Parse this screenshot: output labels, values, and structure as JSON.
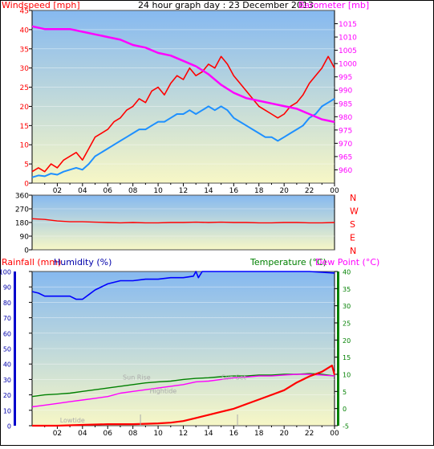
{
  "header": {
    "title": "24 hour graph day : 23 December 2013",
    "wind_label": "Windspeed [mph]",
    "baro_label": "Barometer [mb]"
  },
  "bottom_header": {
    "rain_label": "Rainfall (mm)",
    "hum_label": "Humidity (%)",
    "temp_label": "Temperature (°C)",
    "dew_label": "Dew Point (°C)"
  },
  "colors": {
    "wind_gust": "#ff0000",
    "wind_avg": "#1e90ff",
    "barometer": "#ff00ff",
    "direction": "#ff0000",
    "rain": "#ff0000",
    "humidity": "#0000ff",
    "temperature": "#008000",
    "dewpoint": "#ff00ff",
    "annotation": "#aaaaaa",
    "bg_top": "#86b9f0",
    "bg_bottom": "#f7f7c6"
  },
  "x_ticks": [
    "02",
    "04",
    "06",
    "08",
    "10",
    "12",
    "14",
    "16",
    "18",
    "20",
    "22",
    "00"
  ],
  "annotations": [
    {
      "text": "Lowtide",
      "x": 3.2,
      "y": 2
    },
    {
      "text": "Sun Rise",
      "x": 8.3,
      "y": 30
    },
    {
      "text": "Hightide",
      "x": 10.4,
      "y": 21
    },
    {
      "text": "Sun Set",
      "x": 16.0,
      "y": 30
    }
  ],
  "chart_data": [
    {
      "type": "line",
      "name": "wind-baro",
      "x_range": [
        0,
        24
      ],
      "y_left": {
        "label": "Windspeed [mph]",
        "range": [
          0,
          45
        ],
        "ticks": [
          0,
          5,
          10,
          15,
          20,
          25,
          30,
          35,
          40,
          45
        ]
      },
      "y_right": {
        "label": "Barometer [mb]",
        "range": [
          955,
          1020
        ],
        "ticks": [
          960,
          965,
          970,
          975,
          980,
          985,
          990,
          995,
          1000,
          1005,
          1010,
          1015
        ]
      },
      "series": [
        {
          "name": "Gust",
          "axis": "left",
          "x": [
            0,
            0.5,
            1,
            1.5,
            2,
            2.5,
            3,
            3.5,
            4,
            4.5,
            5,
            5.5,
            6,
            6.5,
            7,
            7.5,
            8,
            8.5,
            9,
            9.5,
            10,
            10.5,
            11,
            11.5,
            12,
            12.5,
            13,
            13.5,
            14,
            14.5,
            15,
            15.5,
            16,
            16.5,
            17,
            17.5,
            18,
            18.5,
            19,
            19.5,
            20,
            20.5,
            21,
            21.5,
            22,
            22.5,
            23,
            23.5,
            24
          ],
          "values": [
            3,
            4,
            3,
            5,
            4,
            6,
            7,
            8,
            6,
            9,
            12,
            13,
            14,
            16,
            17,
            19,
            20,
            22,
            21,
            24,
            25,
            23,
            26,
            28,
            27,
            30,
            28,
            29,
            31,
            30,
            33,
            31,
            28,
            26,
            24,
            22,
            20,
            19,
            18,
            17,
            18,
            20,
            21,
            23,
            26,
            28,
            30,
            33,
            30
          ]
        },
        {
          "name": "Average",
          "axis": "left",
          "x": [
            0,
            0.5,
            1,
            1.5,
            2,
            2.5,
            3,
            3.5,
            4,
            4.5,
            5,
            5.5,
            6,
            6.5,
            7,
            7.5,
            8,
            8.5,
            9,
            9.5,
            10,
            10.5,
            11,
            11.5,
            12,
            12.5,
            13,
            13.5,
            14,
            14.5,
            15,
            15.5,
            16,
            16.5,
            17,
            17.5,
            18,
            18.5,
            19,
            19.5,
            20,
            20.5,
            21,
            21.5,
            22,
            22.5,
            23,
            23.5,
            24
          ],
          "values": [
            1.5,
            2,
            1.8,
            2.5,
            2.2,
            3,
            3.5,
            4,
            3.5,
            5,
            7,
            8,
            9,
            10,
            11,
            12,
            13,
            14,
            14,
            15,
            16,
            16,
            17,
            18,
            18,
            19,
            18,
            19,
            20,
            19,
            20,
            19,
            17,
            16,
            15,
            14,
            13,
            12,
            12,
            11,
            12,
            13,
            14,
            15,
            17,
            18,
            20,
            21,
            22
          ]
        },
        {
          "name": "Barometer",
          "axis": "right",
          "x": [
            0,
            1,
            2,
            3,
            4,
            5,
            6,
            7,
            8,
            9,
            10,
            11,
            12,
            13,
            14,
            15,
            16,
            17,
            18,
            19,
            20,
            21,
            22,
            23,
            24
          ],
          "values": [
            1014,
            1013,
            1013,
            1013,
            1012,
            1011,
            1010,
            1009,
            1007,
            1006,
            1004,
            1003,
            1001,
            999,
            996,
            992,
            989,
            987,
            986,
            985,
            984,
            983,
            981,
            979,
            978
          ]
        }
      ]
    },
    {
      "type": "line",
      "name": "wind-direction",
      "x_range": [
        0,
        24
      ],
      "y_left": {
        "range": [
          0,
          360
        ],
        "ticks": [
          0,
          90,
          180,
          270,
          360
        ]
      },
      "y_right_labels": [
        "N",
        "W",
        "S",
        "E",
        "N"
      ],
      "series": [
        {
          "name": "Direction",
          "x": [
            0,
            1,
            2,
            3,
            4,
            5,
            6,
            7,
            8,
            9,
            10,
            11,
            12,
            13,
            14,
            15,
            16,
            17,
            18,
            19,
            20,
            21,
            22,
            23,
            24
          ],
          "values": [
            205,
            200,
            190,
            185,
            185,
            182,
            180,
            178,
            180,
            178,
            178,
            180,
            180,
            182,
            180,
            182,
            180,
            180,
            178,
            178,
            180,
            180,
            178,
            178,
            180
          ]
        }
      ]
    },
    {
      "type": "line",
      "name": "rain-hum-temp",
      "x_range": [
        0,
        24
      ],
      "y_left": {
        "range": [
          0,
          100
        ],
        "ticks": [
          0,
          10,
          20,
          30,
          40,
          50,
          60,
          70,
          80,
          90,
          100
        ]
      },
      "y_right": {
        "range": [
          -5,
          40
        ],
        "ticks": [
          -5,
          0,
          5,
          10,
          15,
          20,
          25,
          30,
          35,
          40
        ]
      },
      "series": [
        {
          "name": "Humidity",
          "axis": "left",
          "x": [
            0,
            0.5,
            1,
            2,
            3,
            3.5,
            4,
            4.5,
            5,
            6,
            7,
            8,
            9,
            10,
            11,
            12,
            12.8,
            13,
            13.2,
            13.5,
            14,
            15,
            16,
            18,
            20,
            22,
            24
          ],
          "values": [
            87,
            86,
            84,
            84,
            84,
            82,
            82,
            85,
            88,
            92,
            94,
            94,
            95,
            95,
            96,
            96,
            97,
            100,
            96,
            100,
            100,
            100,
            100,
            100,
            100,
            100,
            99
          ]
        },
        {
          "name": "Rainfall",
          "axis": "left",
          "x": [
            0,
            2,
            4,
            6,
            8,
            10,
            11,
            12,
            13,
            14,
            15,
            16,
            17,
            18,
            19,
            20,
            21,
            22,
            23,
            23.8,
            24
          ],
          "values": [
            0,
            0,
            0.5,
            1,
            1,
            1.5,
            2,
            3,
            5,
            7,
            9,
            11,
            14,
            17,
            20,
            23,
            28,
            32,
            35,
            39,
            33
          ]
        },
        {
          "name": "Temperature",
          "axis": "right",
          "x": [
            0,
            1,
            2,
            3,
            4,
            5,
            6,
            7,
            8,
            9,
            10,
            11,
            12,
            13,
            14,
            15,
            16,
            17,
            18,
            19,
            20,
            21,
            22,
            23,
            24
          ],
          "values": [
            3.5,
            4,
            4.2,
            4.5,
            5,
            5.5,
            6,
            6.5,
            7,
            7.5,
            7.8,
            8,
            8.5,
            8.8,
            9,
            9.3,
            9.5,
            9.5,
            9.8,
            9.8,
            10,
            10,
            10.2,
            10,
            9.5
          ]
        },
        {
          "name": "Dew Point",
          "axis": "right",
          "x": [
            0,
            1,
            2,
            3,
            4,
            5,
            6,
            7,
            8,
            9,
            10,
            11,
            12,
            13,
            14,
            15,
            16,
            17,
            18,
            19,
            20,
            21,
            22,
            23,
            24
          ],
          "values": [
            0.5,
            1,
            1.5,
            2,
            2.5,
            3,
            3.5,
            4.5,
            5,
            5.5,
            6,
            6.5,
            7,
            7.8,
            8,
            8.5,
            9,
            9.2,
            9.5,
            9.5,
            9.8,
            10,
            10,
            9.8,
            9.5
          ]
        }
      ]
    }
  ]
}
